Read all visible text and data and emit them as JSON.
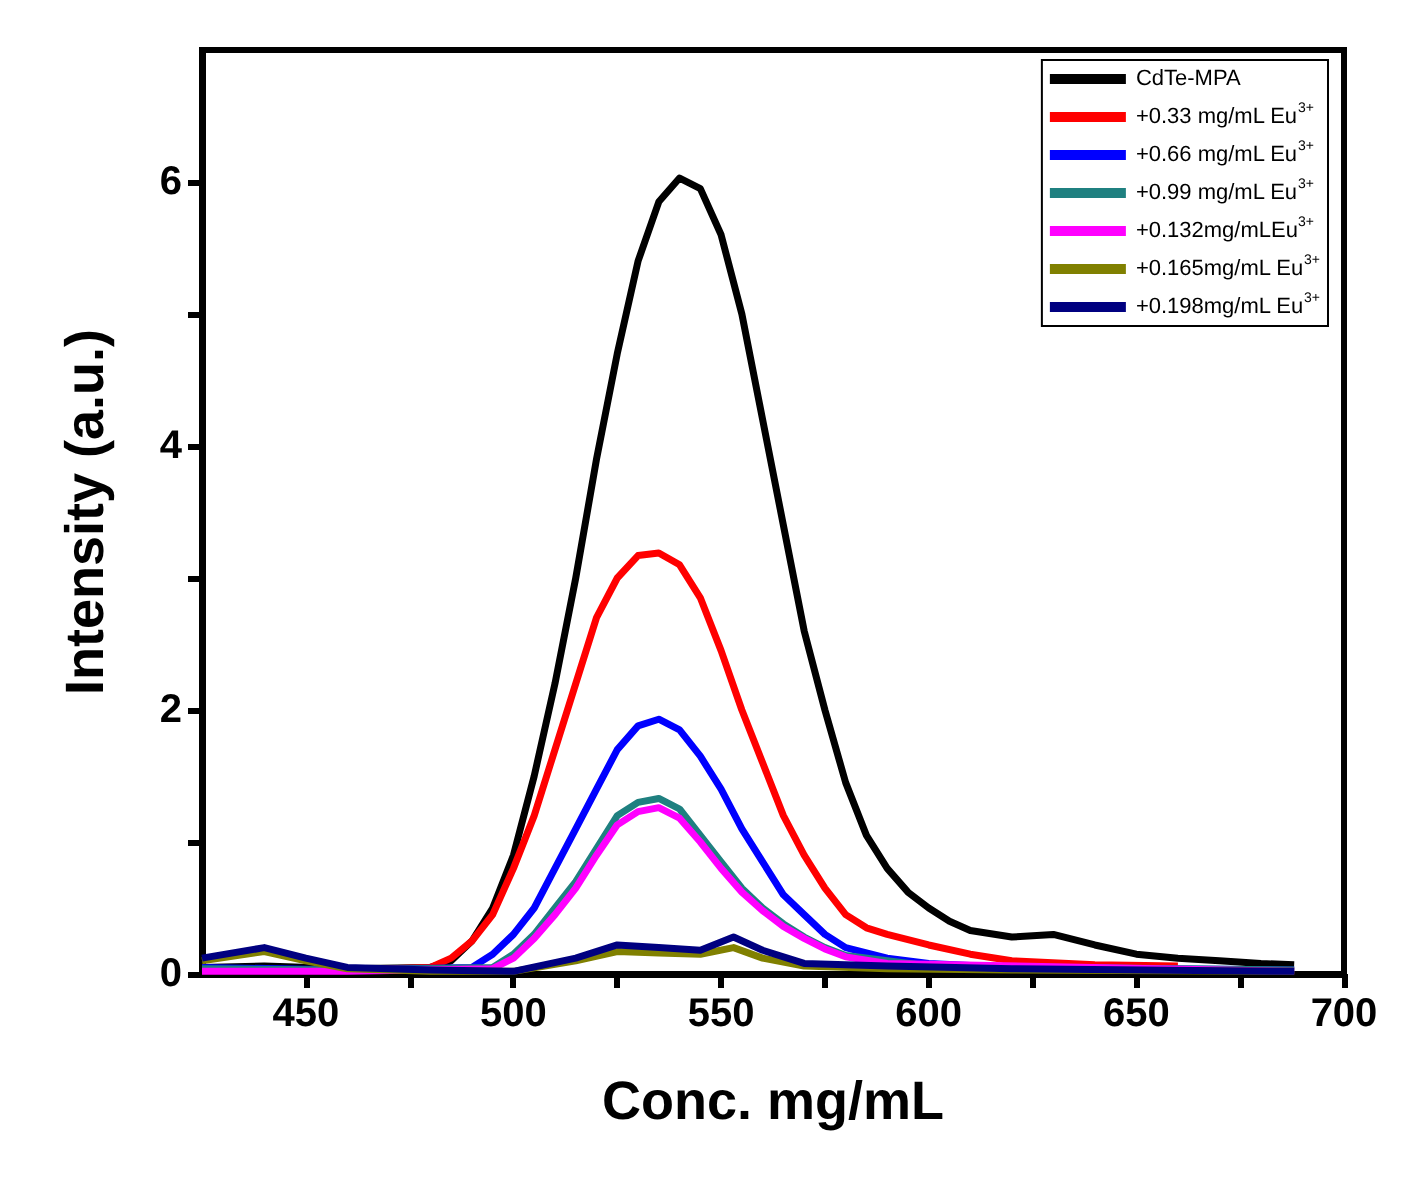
{
  "chart_data": {
    "type": "line",
    "xlabel": "Conc. mg/mL",
    "ylabel": "Intensity (a.u.)",
    "xlim": [
      425,
      700
    ],
    "xticks": [
      450,
      {
        "value": 475,
        "label": null
      },
      500,
      {
        "value": 525,
        "label": null
      },
      550,
      {
        "value": 575,
        "label": null
      },
      600,
      {
        "value": 625,
        "label": null
      },
      650,
      {
        "value": 675,
        "label": null
      },
      700
    ],
    "ylim": [
      0,
      7
    ],
    "yticks": [
      0,
      {
        "value": 1,
        "label": null
      },
      2,
      {
        "value": 3,
        "label": null
      },
      4,
      {
        "value": 5,
        "label": null
      },
      6
    ],
    "grid": false,
    "legend": "top right",
    "series": [
      {
        "name": "CdTe-MPA",
        "color": "#000000",
        "x": [
          425,
          440,
          460,
          480,
          485,
          490,
          495,
          500,
          505,
          510,
          515,
          520,
          525,
          530,
          535,
          540,
          545,
          550,
          555,
          560,
          565,
          570,
          575,
          580,
          585,
          590,
          595,
          600,
          605,
          610,
          620,
          630,
          640,
          650,
          660,
          670,
          680,
          688
        ],
        "values": [
          0.05,
          0.06,
          0.04,
          0.05,
          0.1,
          0.25,
          0.5,
          0.9,
          1.5,
          2.2,
          3.0,
          3.9,
          4.7,
          5.4,
          5.85,
          6.03,
          5.95,
          5.6,
          5.0,
          4.2,
          3.4,
          2.6,
          2.0,
          1.45,
          1.05,
          0.8,
          0.62,
          0.5,
          0.4,
          0.33,
          0.28,
          0.3,
          0.22,
          0.15,
          0.12,
          0.1,
          0.08,
          0.07
        ]
      },
      {
        "name": "+0.33 mg/mL Eu$^{3+}$",
        "color": "#ff0000",
        "x": [
          460,
          480,
          485,
          490,
          495,
          500,
          505,
          510,
          515,
          520,
          525,
          530,
          535,
          540,
          545,
          550,
          555,
          560,
          565,
          570,
          575,
          580,
          585,
          590,
          600,
          610,
          620,
          640,
          660
        ],
        "values": [
          0.03,
          0.05,
          0.12,
          0.25,
          0.45,
          0.8,
          1.2,
          1.7,
          2.2,
          2.7,
          3.0,
          3.17,
          3.19,
          3.1,
          2.85,
          2.45,
          2.0,
          1.6,
          1.2,
          0.9,
          0.65,
          0.45,
          0.35,
          0.3,
          0.22,
          0.15,
          0.1,
          0.07,
          0.06
        ]
      },
      {
        "name": "+0.66 mg/mL Eu$^{3+}$",
        "color": "#0000ff",
        "x": [
          425,
          460,
          490,
          495,
          500,
          505,
          510,
          515,
          520,
          525,
          530,
          535,
          540,
          545,
          550,
          555,
          560,
          565,
          570,
          575,
          580,
          590,
          600,
          620,
          688
        ],
        "values": [
          0.05,
          0.03,
          0.05,
          0.15,
          0.3,
          0.5,
          0.8,
          1.1,
          1.4,
          1.7,
          1.88,
          1.93,
          1.85,
          1.65,
          1.4,
          1.1,
          0.85,
          0.6,
          0.45,
          0.3,
          0.2,
          0.12,
          0.08,
          0.05,
          0.03
        ]
      },
      {
        "name": "+0.99 mg/mL Eu$^{3+}$",
        "color": "#1f8080",
        "x": [
          425,
          460,
          495,
          500,
          505,
          510,
          515,
          520,
          525,
          530,
          535,
          540,
          545,
          550,
          555,
          560,
          565,
          570,
          575,
          580,
          590,
          600,
          688
        ],
        "values": [
          0.04,
          0.03,
          0.05,
          0.15,
          0.3,
          0.5,
          0.7,
          0.95,
          1.2,
          1.3,
          1.33,
          1.25,
          1.05,
          0.85,
          0.65,
          0.5,
          0.38,
          0.28,
          0.2,
          0.14,
          0.1,
          0.06,
          0.03
        ]
      },
      {
        "name": "+0.132mg/mLEu$^{3+}$",
        "color": "#ff00ff",
        "x": [
          425,
          460,
          495,
          500,
          505,
          510,
          515,
          520,
          525,
          530,
          535,
          540,
          545,
          550,
          555,
          560,
          565,
          570,
          575,
          580,
          590,
          688
        ],
        "values": [
          0.02,
          0.02,
          0.04,
          0.12,
          0.27,
          0.45,
          0.65,
          0.9,
          1.13,
          1.23,
          1.26,
          1.18,
          1.0,
          0.8,
          0.62,
          0.48,
          0.36,
          0.27,
          0.19,
          0.13,
          0.08,
          0.02
        ]
      },
      {
        "name": "+0.165mg/mL Eu$^{3+}$",
        "color": "#808000",
        "x": [
          425,
          440,
          450,
          460,
          480,
          500,
          515,
          525,
          535,
          545,
          553,
          560,
          570,
          590,
          620,
          688
        ],
        "values": [
          0.1,
          0.17,
          0.1,
          0.04,
          0.02,
          0.02,
          0.1,
          0.17,
          0.16,
          0.15,
          0.2,
          0.12,
          0.06,
          0.04,
          0.03,
          0.02
        ]
      },
      {
        "name": "+0.198mg/mL Eu$^{3+}$",
        "color": "#000080",
        "x": [
          425,
          440,
          450,
          460,
          480,
          500,
          515,
          525,
          535,
          545,
          553,
          560,
          570,
          590,
          620,
          688
        ],
        "values": [
          0.12,
          0.2,
          0.12,
          0.05,
          0.03,
          0.02,
          0.12,
          0.22,
          0.2,
          0.18,
          0.28,
          0.18,
          0.08,
          0.06,
          0.04,
          0.02
        ]
      }
    ]
  }
}
